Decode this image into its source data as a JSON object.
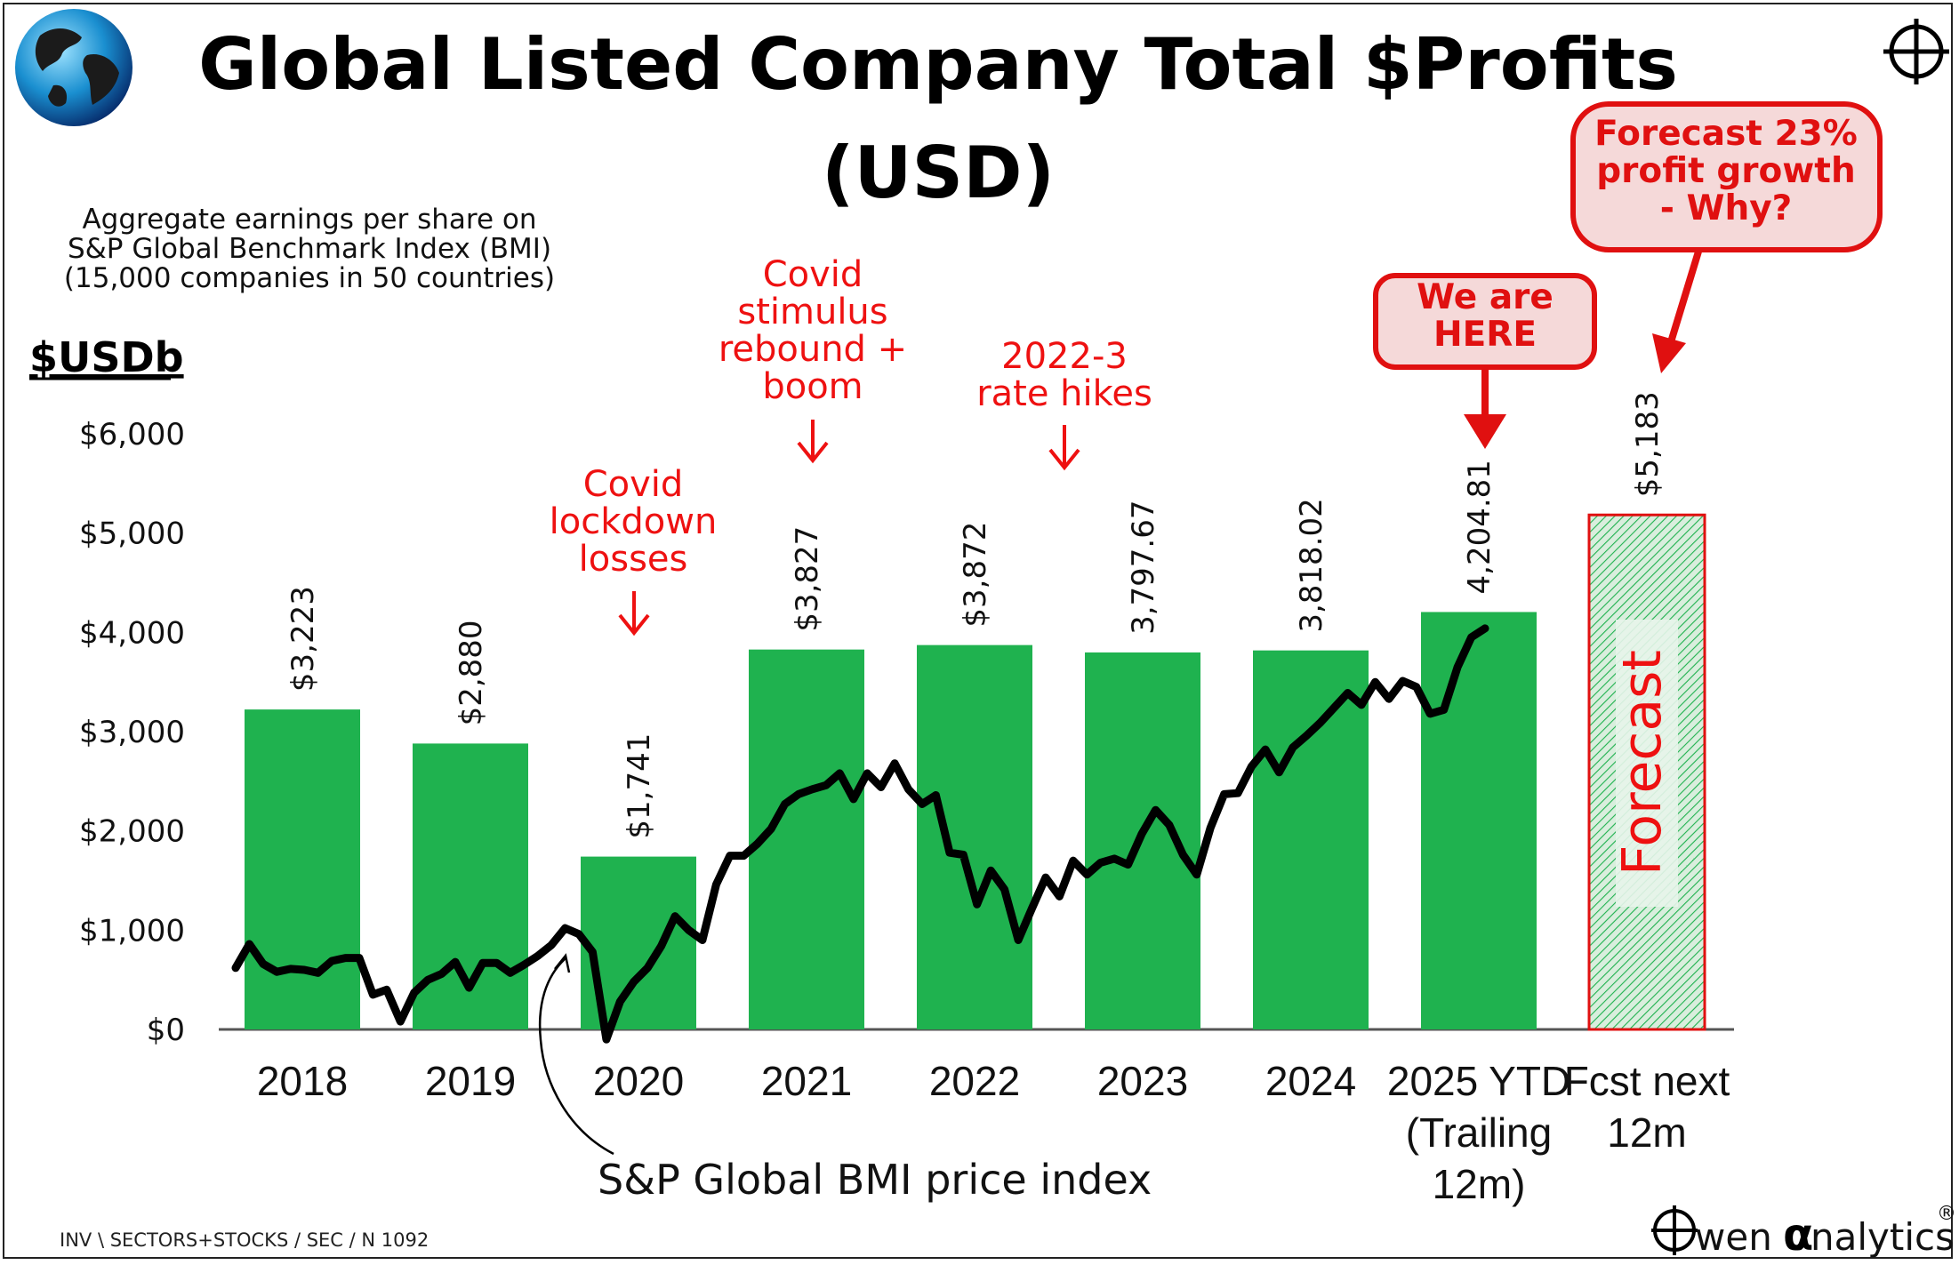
{
  "title_line1": "Global Listed Company Total $Profits",
  "title_line2": "(USD)",
  "subtitle_lines": [
    "Aggregate earnings per share on",
    "S&P Global Benchmark Index (BMI)",
    "(15,000 companies in 50 countries)"
  ],
  "unit_label": "$USDb",
  "footer_code": "INV \\ SECTORS+STOCKS / SEC / N 1092",
  "brand": {
    "prefix": "wen",
    "alpha": "α",
    "suffix": "nalytics",
    "registered": "®"
  },
  "forecast_bar_label": "Forecast",
  "index_label": "S&P Global BMI price index",
  "annotations": {
    "covid_lockdown": [
      "Covid",
      "lockdown",
      "losses"
    ],
    "covid_stimulus": [
      "Covid",
      "stimulus",
      "rebound +",
      "boom"
    ],
    "rate_hikes": [
      "2022-3",
      "rate hikes"
    ],
    "we_are_here": [
      "We are",
      "HERE"
    ],
    "forecast_growth": [
      "Forecast 23%",
      "profit growth",
      "- Why?"
    ]
  },
  "colors": {
    "bar": "#1fb24f",
    "forecast_fill": "#cfe8d4",
    "forecast_border": "#e01010",
    "annotation": "#ee1111",
    "callout_fill": "#f5d9d9",
    "line": "#000000"
  },
  "icons": [
    "globe-icon",
    "crosshair-icon",
    "down-arrow-icon"
  ],
  "chart_data": {
    "type": "bar",
    "title": "Global Listed Company Total $Profits (USD)",
    "ylabel": "$USDb",
    "ylim": [
      0,
      6000
    ],
    "yticks": [
      0,
      1000,
      2000,
      3000,
      4000,
      5000,
      6000
    ],
    "ytick_labels": [
      "$0",
      "$1,000",
      "$2,000",
      "$3,000",
      "$4,000",
      "$5,000",
      "$6,000"
    ],
    "categories": [
      [
        "2018"
      ],
      [
        "2019"
      ],
      [
        "2020"
      ],
      [
        "2021"
      ],
      [
        "2022"
      ],
      [
        "2023"
      ],
      [
        "2024"
      ],
      [
        "2025 YTD",
        "(Trailing",
        "12m)"
      ],
      [
        "Fcst next",
        "12m"
      ]
    ],
    "values": [
      3223,
      2880,
      1741,
      3827,
      3872,
      3797.67,
      3818.02,
      4204.81,
      5183
    ],
    "value_labels": [
      "$3,223",
      "$2,880",
      "$1,741",
      "$3,827",
      "$3,872",
      "3,797.67",
      "3,818.02",
      "4,204.81",
      "$5,183"
    ],
    "forecast_index": 8,
    "grid": false,
    "legend": "none",
    "overlay_line": {
      "name": "S&P Global BMI price index",
      "note": "unscaled overlay drawn against the $USDb axis",
      "values": [
        620,
        860,
        660,
        580,
        610,
        600,
        570,
        690,
        720,
        720,
        350,
        400,
        80,
        370,
        500,
        560,
        680,
        420,
        670,
        670,
        570,
        650,
        740,
        850,
        1020,
        960,
        780,
        -100,
        280,
        480,
        620,
        840,
        1140,
        1000,
        900,
        1460,
        1750,
        1750,
        1870,
        2020,
        2270,
        2370,
        2420,
        2460,
        2580,
        2320,
        2580,
        2440,
        2680,
        2420,
        2270,
        2360,
        1780,
        1760,
        1260,
        1600,
        1410,
        900,
        1220,
        1530,
        1340,
        1700,
        1560,
        1680,
        1720,
        1660,
        1970,
        2210,
        2060,
        1760,
        1560,
        2030,
        2370,
        2380,
        2650,
        2820,
        2590,
        2840,
        2960,
        3090,
        3240,
        3390,
        3270,
        3500,
        3330,
        3510,
        3450,
        3180,
        3220,
        3650,
        3950,
        4040
      ]
    }
  }
}
